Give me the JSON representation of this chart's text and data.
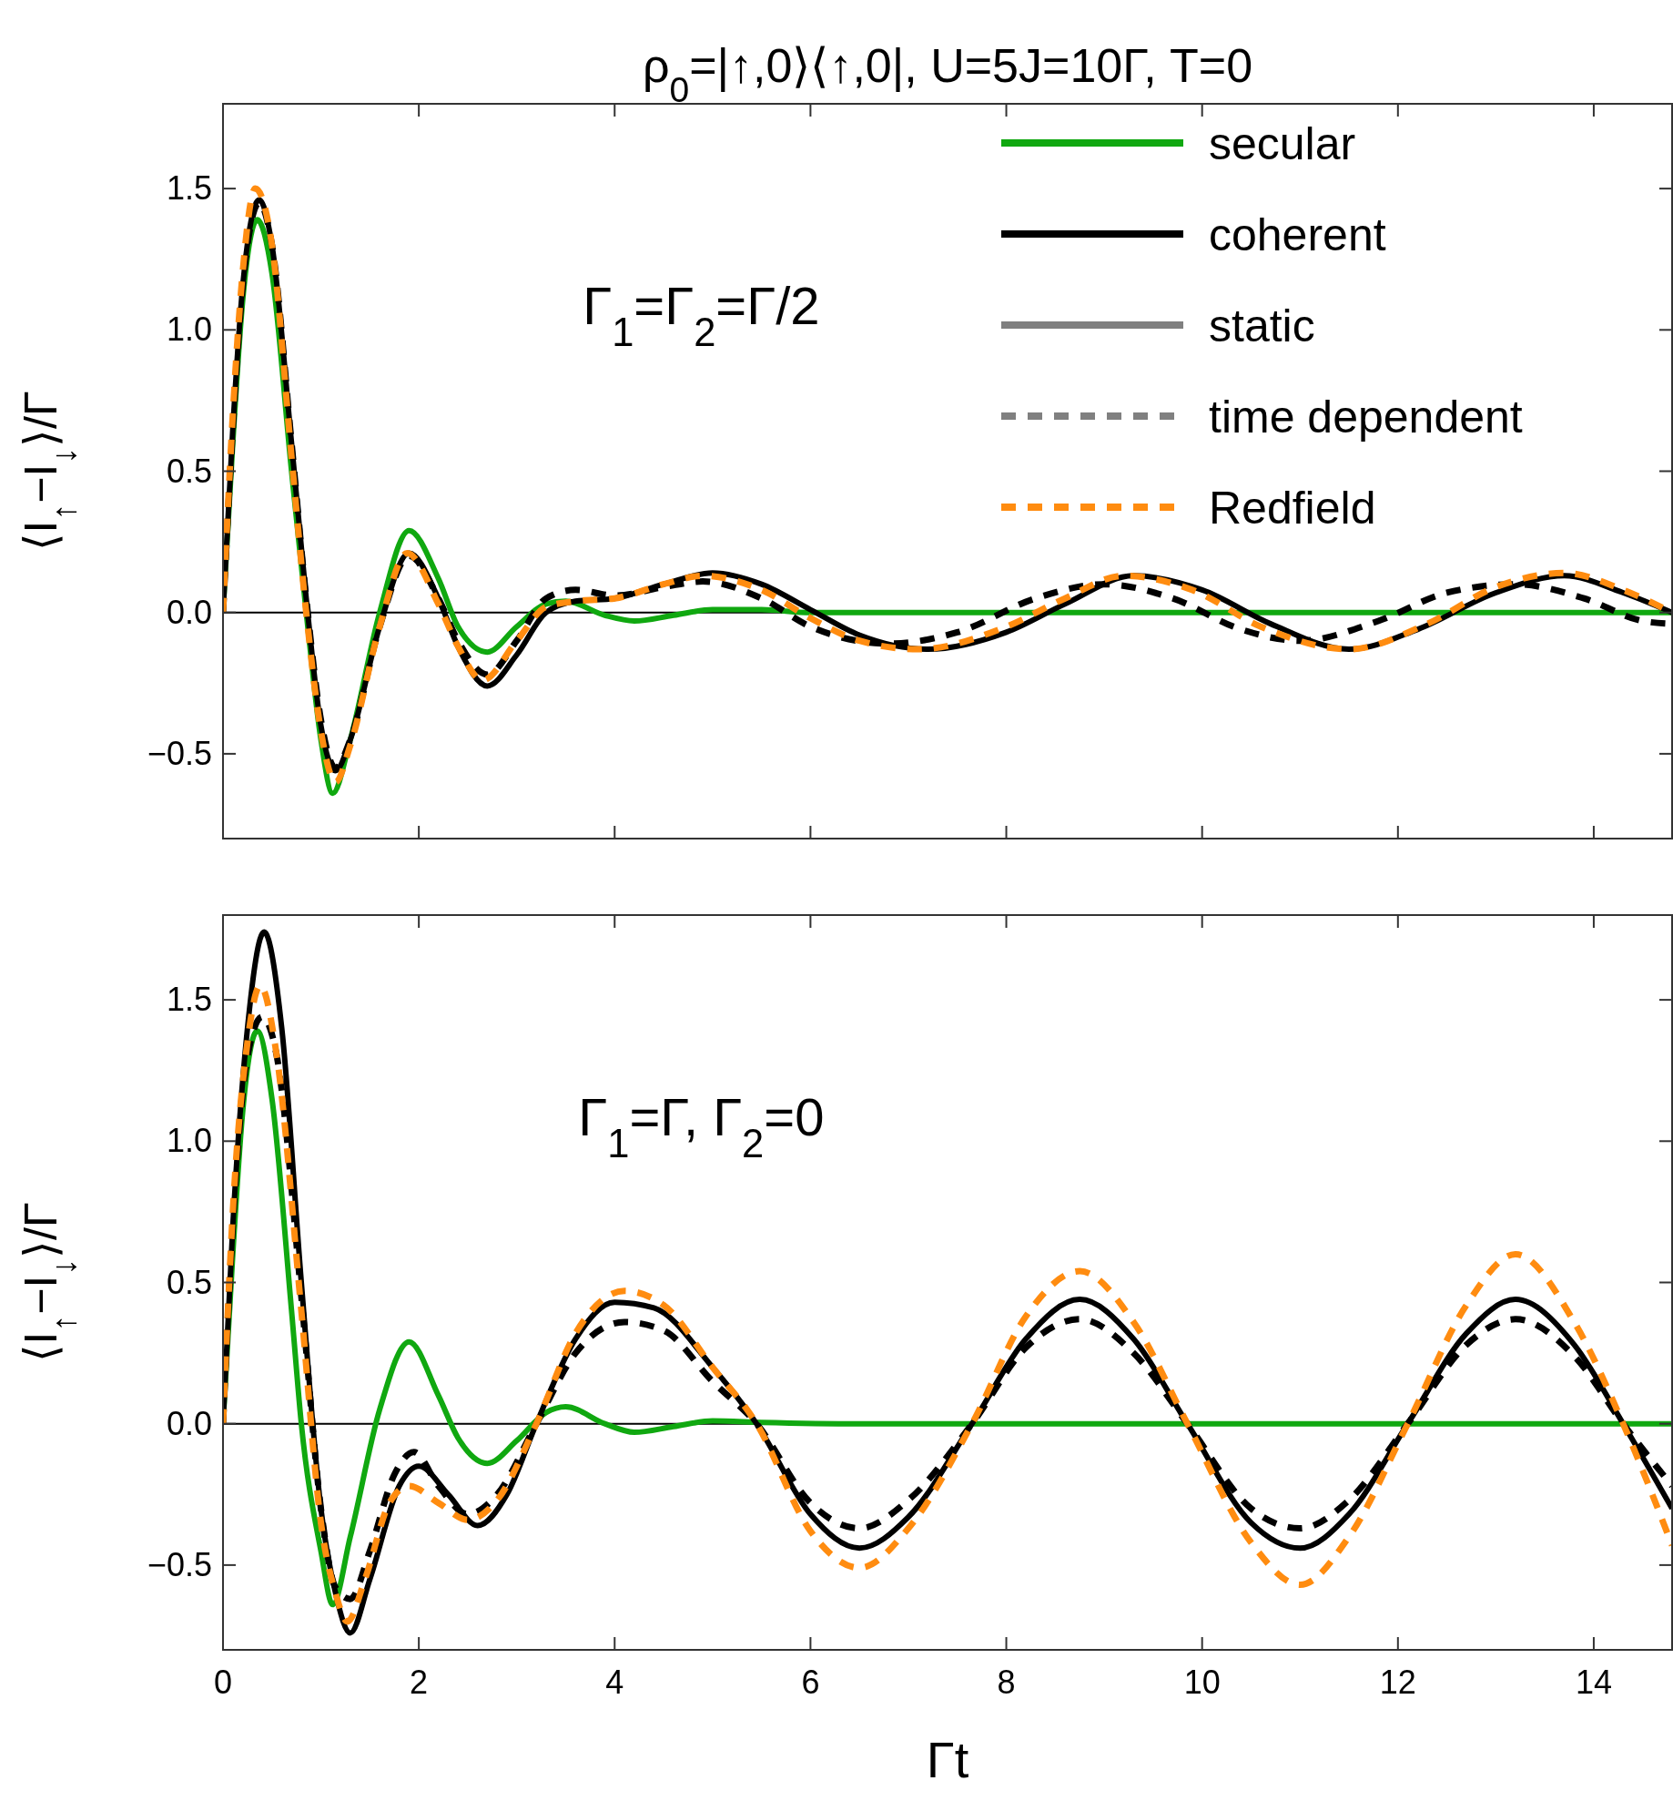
{
  "chart_data": [
    {
      "type": "line",
      "title": "ρ$_{0}$=|↑,0⟩⟨↑,0|, U=5J=10Γ, T=0",
      "ylabel": "⟨I$_{↑}$−I$_{↓}$⟩/Γ",
      "annotations": [
        "Γ$_{1}$=Γ$_{2}$=Γ/2"
      ],
      "xlim": [
        0,
        14.8
      ],
      "ylim": [
        -0.8,
        1.8
      ],
      "xticks": [
        0,
        2,
        4,
        6,
        8,
        10,
        12,
        14
      ],
      "yticks": [
        {
          "value": -0.5,
          "label": "−0.5"
        },
        {
          "value": 0,
          "label": "0.0"
        },
        {
          "value": 0.5,
          "label": "0.5"
        },
        {
          "value": 1,
          "label": "1.0"
        },
        {
          "value": 1.5,
          "label": "1.5"
        }
      ],
      "tick_labels": "y",
      "legend": "top right",
      "grid": false,
      "ref_lines": [
        {
          "axis": "y",
          "value": 0,
          "color": "#000000"
        }
      ],
      "series": [
        {
          "name": "secular",
          "color": "#10a810",
          "line_style": "solid",
          "x": [
            0,
            0.1,
            0.2,
            0.35,
            0.5,
            0.7,
            0.85,
            1.0,
            1.12,
            1.3,
            1.6,
            1.9,
            2.2,
            2.4,
            2.7,
            3.0,
            3.3,
            3.5,
            3.9,
            4.2,
            4.6,
            5.0,
            5.5,
            6,
            8,
            10,
            12,
            14.8
          ],
          "values": [
            0,
            0.6,
            1.1,
            1.39,
            1.2,
            0.5,
            0,
            -0.45,
            -0.64,
            -0.45,
            0,
            0.29,
            0.12,
            -0.05,
            -0.14,
            -0.05,
            0.03,
            0.04,
            -0.01,
            -0.03,
            -0.01,
            0.01,
            0.01,
            0,
            0,
            0,
            0,
            0
          ]
        },
        {
          "name": "coherent",
          "color": "#000000",
          "line_style": "solid",
          "x": [
            0,
            0.1,
            0.2,
            0.37,
            0.5,
            0.7,
            0.85,
            1.0,
            1.15,
            1.3,
            1.6,
            1.9,
            2.2,
            2.4,
            2.7,
            3.0,
            3.3,
            3.6,
            4.0,
            4.5,
            5.0,
            5.5,
            6.0,
            6.5,
            7.2,
            8.0,
            8.6,
            9.3,
            10,
            10.7,
            11.5,
            12.2,
            13,
            13.7,
            14.3,
            14.8
          ],
          "values": [
            0,
            0.65,
            1.15,
            1.46,
            1.3,
            0.6,
            0.05,
            -0.4,
            -0.56,
            -0.45,
            -0.05,
            0.21,
            0.05,
            -0.12,
            -0.26,
            -0.15,
            0,
            0.04,
            0.05,
            0.1,
            0.14,
            0.1,
            0.01,
            -0.08,
            -0.13,
            -0.07,
            0.03,
            0.13,
            0.08,
            -0.04,
            -0.13,
            -0.06,
            0.07,
            0.13,
            0.07,
            0
          ]
        },
        {
          "name": "static",
          "color": "#808080",
          "line_style": "solid"
        },
        {
          "name": "time dependent",
          "color": "#808080",
          "line_style": "dashed"
        },
        {
          "color": "#000000",
          "line_style": "dashed",
          "x": [
            0,
            0.1,
            0.2,
            0.37,
            0.5,
            0.7,
            0.85,
            1.0,
            1.15,
            1.3,
            1.6,
            1.9,
            2.2,
            2.4,
            2.7,
            3.0,
            3.3,
            3.6,
            4.0,
            4.5,
            4.9,
            5.5,
            6.0,
            6.8,
            7.5,
            8.3,
            9.0,
            9.7,
            10.4,
            11.0,
            11.8,
            12.5,
            13.2,
            13.9,
            14.5,
            14.8
          ],
          "values": [
            0,
            0.65,
            1.15,
            1.45,
            1.3,
            0.6,
            0.05,
            -0.38,
            -0.55,
            -0.45,
            -0.05,
            0.2,
            0.05,
            -0.1,
            -0.22,
            -0.1,
            0.05,
            0.08,
            0.06,
            0.09,
            0.11,
            0.05,
            -0.05,
            -0.11,
            -0.07,
            0.05,
            0.1,
            0.05,
            -0.06,
            -0.1,
            -0.03,
            0.07,
            0.1,
            0.05,
            -0.03,
            -0.04
          ]
        },
        {
          "name": "Redfield",
          "color": "#ff8c10",
          "line_style": "dashed",
          "x": [
            0,
            0.1,
            0.2,
            0.33,
            0.5,
            0.7,
            0.85,
            1.0,
            1.15,
            1.3,
            1.6,
            1.88,
            2.2,
            2.4,
            2.65,
            3.0,
            3.3,
            3.6,
            4.0,
            4.5,
            4.9,
            5.5,
            6.0,
            6.5,
            7.1,
            8.0,
            8.6,
            9.2,
            9.9,
            10.6,
            11.5,
            12.3,
            13.0,
            13.7,
            14.3,
            14.8
          ],
          "values": [
            0,
            0.7,
            1.2,
            1.5,
            1.3,
            0.55,
            0,
            -0.42,
            -0.6,
            -0.47,
            -0.05,
            0.21,
            0.03,
            -0.12,
            -0.24,
            -0.1,
            0.02,
            0.04,
            0.05,
            0.1,
            0.13,
            0.08,
            -0.02,
            -0.1,
            -0.13,
            -0.05,
            0.05,
            0.13,
            0.08,
            -0.05,
            -0.13,
            -0.04,
            0.09,
            0.14,
            0.08,
            0
          ]
        }
      ]
    },
    {
      "type": "line",
      "xlabel": "Γt",
      "ylabel": "⟨I$_{↑}$−I$_{↓}$⟩/Γ",
      "annotations": [
        "Γ$_{1}$=Γ, Γ$_{2}$=0"
      ],
      "xlim": [
        0,
        14.8
      ],
      "ylim": [
        -0.8,
        1.8
      ],
      "xticks": [
        0,
        2,
        4,
        6,
        8,
        10,
        12,
        14
      ],
      "yticks": [
        {
          "value": -0.5,
          "label": "−0.5"
        },
        {
          "value": 0,
          "label": "0.0"
        },
        {
          "value": 0.5,
          "label": "0.5"
        },
        {
          "value": 1,
          "label": "1.0"
        },
        {
          "value": 1.5,
          "label": "1.5"
        }
      ],
      "grid": false,
      "ref_lines": [
        {
          "axis": "y",
          "value": 0,
          "color": "#000000"
        }
      ],
      "series": [
        {
          "color": "#10a810",
          "line_style": "solid",
          "x": [
            0,
            0.1,
            0.2,
            0.35,
            0.5,
            0.7,
            0.8,
            1.0,
            1.12,
            1.3,
            1.6,
            1.9,
            2.2,
            2.4,
            2.7,
            3.0,
            3.3,
            3.5,
            3.9,
            4.2,
            4.6,
            5.0,
            5.5,
            6.5,
            14.8
          ],
          "values": [
            0,
            0.6,
            1.1,
            1.39,
            1.15,
            0.4,
            0,
            -0.45,
            -0.64,
            -0.4,
            0.05,
            0.29,
            0.1,
            -0.05,
            -0.14,
            -0.06,
            0.04,
            0.06,
            0,
            -0.03,
            -0.01,
            0.01,
            0.005,
            0,
            0
          ]
        },
        {
          "color": "#000000",
          "line_style": "solid",
          "x": [
            0,
            0.1,
            0.25,
            0.42,
            0.6,
            0.8,
            1.0,
            1.15,
            1.3,
            1.5,
            1.8,
            2.0,
            2.3,
            2.6,
            2.9,
            3.2,
            3.6,
            4.0,
            4.4,
            5.0,
            5.45,
            6.0,
            6.5,
            7.0,
            7.65,
            8.2,
            8.75,
            9.3,
            9.85,
            10.5,
            11.0,
            11.5,
            12.1,
            12.7,
            13.2,
            13.8,
            14.3,
            14.8
          ],
          "values": [
            0,
            0.7,
            1.4,
            1.74,
            1.4,
            0.5,
            -0.3,
            -0.6,
            -0.74,
            -0.55,
            -0.22,
            -0.15,
            -0.25,
            -0.36,
            -0.25,
            0,
            0.3,
            0.43,
            0.41,
            0.2,
            0,
            -0.32,
            -0.44,
            -0.33,
            0,
            0.3,
            0.44,
            0.3,
            0,
            -0.35,
            -0.44,
            -0.32,
            0,
            0.32,
            0.44,
            0.28,
            0,
            -0.3
          ]
        },
        {
          "color": "#000000",
          "line_style": "dashed",
          "x": [
            0,
            0.1,
            0.25,
            0.4,
            0.55,
            0.8,
            1.0,
            1.15,
            1.3,
            1.5,
            1.75,
            1.95,
            2.2,
            2.5,
            2.8,
            3.2,
            3.6,
            4.1,
            4.5,
            5.0,
            5.45,
            6.0,
            6.5,
            7.0,
            7.65,
            8.2,
            8.75,
            9.3,
            9.85,
            10.5,
            11.0,
            11.5,
            12.1,
            12.7,
            13.2,
            13.8,
            14.3,
            14.8
          ],
          "values": [
            0,
            0.7,
            1.3,
            1.44,
            1.3,
            0.45,
            -0.3,
            -0.58,
            -0.62,
            -0.45,
            -0.18,
            -0.1,
            -0.22,
            -0.32,
            -0.25,
            0,
            0.25,
            0.36,
            0.33,
            0.15,
            0,
            -0.28,
            -0.37,
            -0.27,
            0,
            0.27,
            0.37,
            0.25,
            0,
            -0.3,
            -0.37,
            -0.27,
            0,
            0.28,
            0.37,
            0.24,
            0,
            -0.22
          ]
        },
        {
          "color": "#ff8c10",
          "line_style": "dashed",
          "x": [
            0,
            0.1,
            0.25,
            0.38,
            0.55,
            0.8,
            1.0,
            1.15,
            1.27,
            1.45,
            1.7,
            1.9,
            2.2,
            2.5,
            2.8,
            3.2,
            3.6,
            4.1,
            4.5,
            5.0,
            5.45,
            6.0,
            6.5,
            7.0,
            7.65,
            8.2,
            8.75,
            9.3,
            9.85,
            10.5,
            11.0,
            11.5,
            12.1,
            12.7,
            13.2,
            13.8,
            14.3,
            14.8
          ],
          "values": [
            0,
            0.75,
            1.35,
            1.55,
            1.3,
            0.4,
            -0.35,
            -0.6,
            -0.7,
            -0.55,
            -0.28,
            -0.22,
            -0.28,
            -0.34,
            -0.27,
            0,
            0.32,
            0.47,
            0.42,
            0.2,
            0,
            -0.38,
            -0.51,
            -0.37,
            0,
            0.38,
            0.54,
            0.36,
            0,
            -0.42,
            -0.57,
            -0.4,
            0,
            0.42,
            0.6,
            0.36,
            0,
            -0.43
          ]
        }
      ]
    }
  ]
}
